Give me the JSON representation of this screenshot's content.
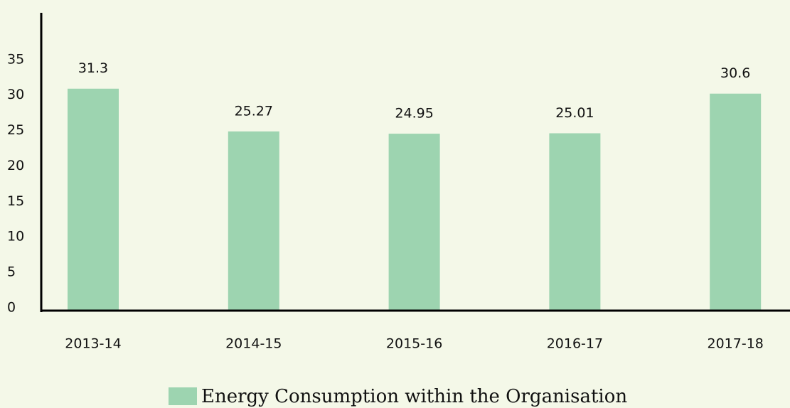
{
  "chart_data": {
    "type": "bar",
    "categories": [
      "2013-14",
      "2014-15",
      "2015-16",
      "2016-17",
      "2017-18"
    ],
    "series": [
      {
        "name": "Energy Consumption within the Organisation",
        "color": "#9dd4b0",
        "values": [
          31.3,
          25.27,
          24.95,
          25.01,
          30.6
        ]
      }
    ],
    "ylim": [
      0,
      42
    ],
    "yticks": [
      0,
      5,
      10,
      15,
      20,
      25,
      30,
      35
    ],
    "grid": false
  }
}
